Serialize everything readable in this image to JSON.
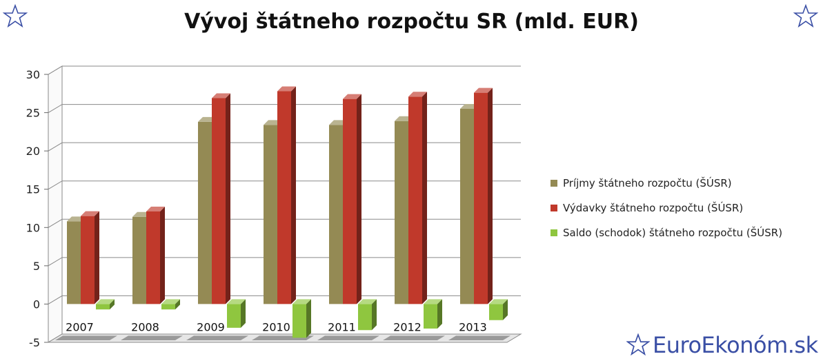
{
  "title": "Vývoj štátneho rozpočtu SR (mld. EUR)",
  "brand": "EuroEkonóm.sk",
  "icons": {
    "corner_left": "star-outline-icon",
    "corner_right": "star-outline-icon",
    "brand": "star-outline-icon"
  },
  "colors": {
    "brand": "#3a4fa5",
    "revenue": "#948a54",
    "expenditure": "#c0392b",
    "balance": "#8fc63f"
  },
  "chart_data": {
    "type": "bar",
    "title": "Vývoj štátneho rozpočtu SR (mld. EUR)",
    "categories": [
      "2007",
      "2008",
      "2009",
      "2010",
      "2011",
      "2012",
      "2013"
    ],
    "series": [
      {
        "name": "Príjmy štátneho rozpočtu (ŠÚSR)",
        "values": [
          10.8,
          11.4,
          23.8,
          23.4,
          23.4,
          23.9,
          25.5
        ]
      },
      {
        "name": "Výdavky štátneho rozpočtu (ŠÚSR)",
        "values": [
          11.5,
          12.1,
          26.9,
          27.8,
          26.8,
          27.1,
          27.6
        ]
      },
      {
        "name": "Saldo (schodok) štátneho rozpočtu (ŠÚSR)",
        "values": [
          -0.7,
          -0.7,
          -3.1,
          -4.4,
          -3.4,
          -3.2,
          -2.1
        ]
      }
    ],
    "ylim": [
      -5,
      30
    ],
    "yticks": [
      -5,
      0,
      5,
      10,
      15,
      20,
      25,
      30
    ],
    "grid": true,
    "legend": "right"
  }
}
